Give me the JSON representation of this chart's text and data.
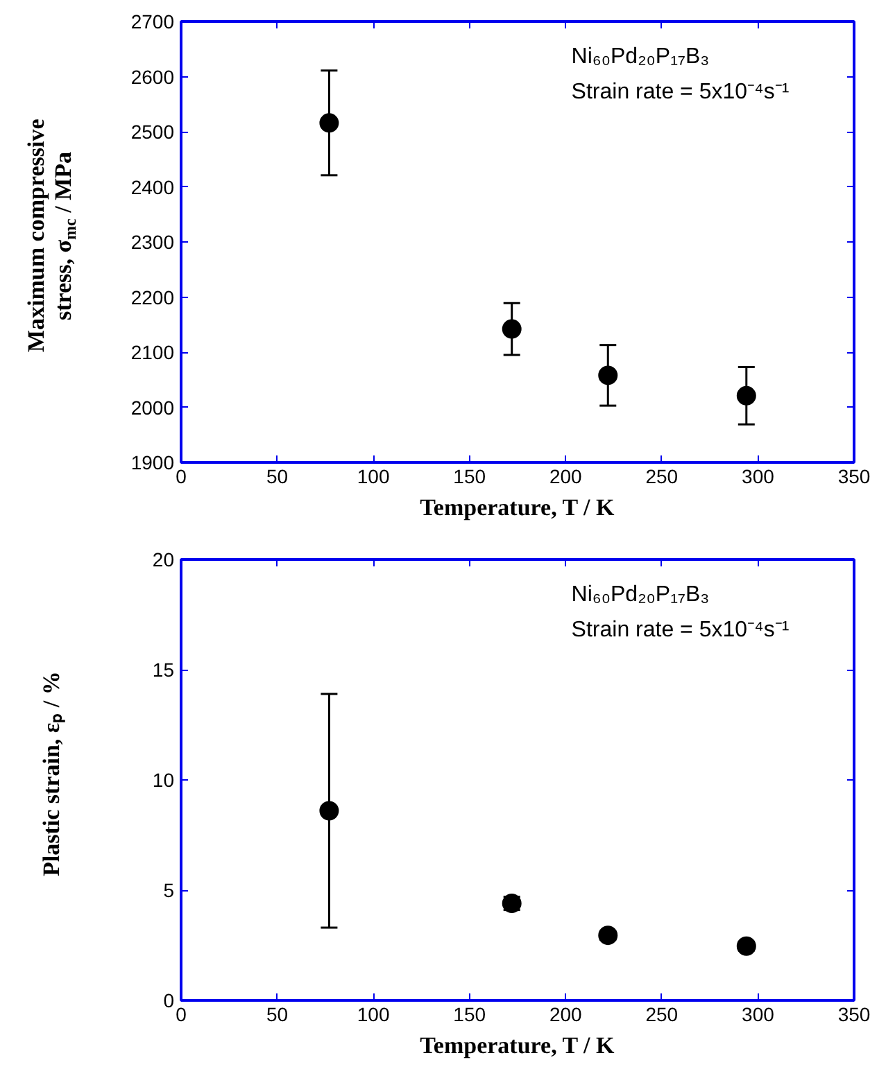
{
  "chart_data": [
    {
      "type": "scatter",
      "xlabel": "Temperature, T / K",
      "ylabel": "Maximum compressive\nstress, σ$_{mc}$ / MPa",
      "annotations": [
        "Ni₆₀Pd₂₀P₁₇B₃",
        "Strain rate = 5x10⁻⁴s⁻¹"
      ],
      "x": [
        77,
        172,
        222,
        294
      ],
      "marker": "circle",
      "series": [
        {
          "color": "#000000",
          "values": [
            2516,
            2142,
            2058,
            2021
          ],
          "errors": [
            95,
            47,
            55,
            52
          ]
        }
      ],
      "xlim": [
        0,
        350
      ],
      "xticks": [
        0,
        50,
        100,
        150,
        200,
        250,
        300,
        350
      ],
      "ylim": [
        1900,
        2700
      ],
      "yticks": [
        1900,
        2000,
        2100,
        2200,
        2300,
        2400,
        2500,
        2600,
        2700
      ]
    },
    {
      "type": "scatter",
      "xlabel": "Temperature, T / K",
      "ylabel": "Plastic strain, εₚ / %",
      "annotations": [
        "Ni₆₀Pd₂₀P₁₇B₃",
        "Strain rate = 5x10⁻⁴s⁻¹"
      ],
      "x": [
        77,
        172,
        222,
        294
      ],
      "marker": "circle",
      "series": [
        {
          "color": "#000000",
          "values": [
            8.6,
            4.4,
            2.95,
            2.46
          ],
          "errors": [
            5.3,
            0.3,
            0.2,
            0.2
          ]
        }
      ],
      "xlim": [
        0,
        350
      ],
      "xticks": [
        0,
        50,
        100,
        150,
        200,
        250,
        300,
        350
      ],
      "ylim": [
        0,
        20
      ],
      "yticks": [
        0,
        5,
        10,
        15,
        20
      ]
    }
  ]
}
